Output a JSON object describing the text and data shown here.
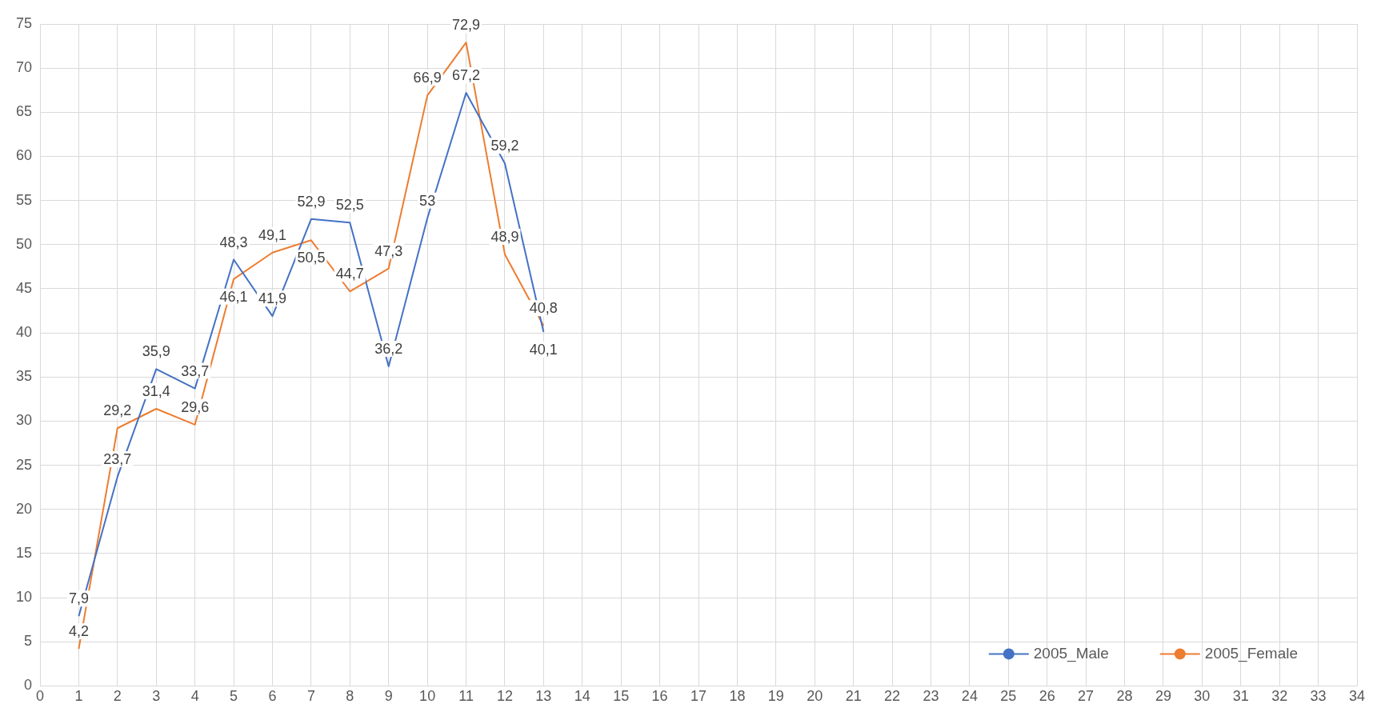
{
  "chart_data": {
    "type": "line",
    "x": [
      1,
      2,
      3,
      4,
      5,
      6,
      7,
      8,
      9,
      10,
      11,
      12,
      13
    ],
    "xlim": [
      0,
      34
    ],
    "xticks": [
      0,
      1,
      2,
      3,
      4,
      5,
      6,
      7,
      8,
      9,
      10,
      11,
      12,
      13,
      14,
      15,
      16,
      17,
      18,
      19,
      20,
      21,
      22,
      23,
      24,
      25,
      26,
      27,
      28,
      29,
      30,
      31,
      32,
      33,
      34
    ],
    "ylim": [
      0,
      75
    ],
    "yticks": [
      0,
      5,
      10,
      15,
      20,
      25,
      30,
      35,
      40,
      45,
      50,
      55,
      60,
      65,
      70,
      75
    ],
    "grid": true,
    "legend": "bottom right",
    "marker": "none",
    "line_style": "solid",
    "series": [
      {
        "name": "2005_Male",
        "color": "#4472c4",
        "values": [
          7.9,
          23.7,
          35.9,
          33.7,
          48.3,
          41.9,
          52.9,
          52.5,
          36.2,
          53,
          67.2,
          59.2,
          40.1
        ],
        "value_labels": [
          "7,9",
          "23,7",
          "35,9",
          "33,7",
          "48,3",
          "41,9",
          "52,9",
          "52,5",
          "36,2",
          "53",
          "67,2",
          "59,2",
          "40,1"
        ]
      },
      {
        "name": "2005_Female",
        "color": "#ed7d31",
        "values": [
          4.2,
          29.2,
          31.4,
          29.6,
          46.1,
          49.1,
          50.5,
          44.7,
          47.3,
          66.9,
          72.9,
          48.9,
          40.8
        ],
        "value_labels": [
          "4,2",
          "29,2",
          "31,4",
          "29,6",
          "46,1",
          "49,1",
          "50,5",
          "44,7",
          "47,3",
          "66,9",
          "72,9",
          "48,9",
          "40,8"
        ]
      }
    ]
  }
}
